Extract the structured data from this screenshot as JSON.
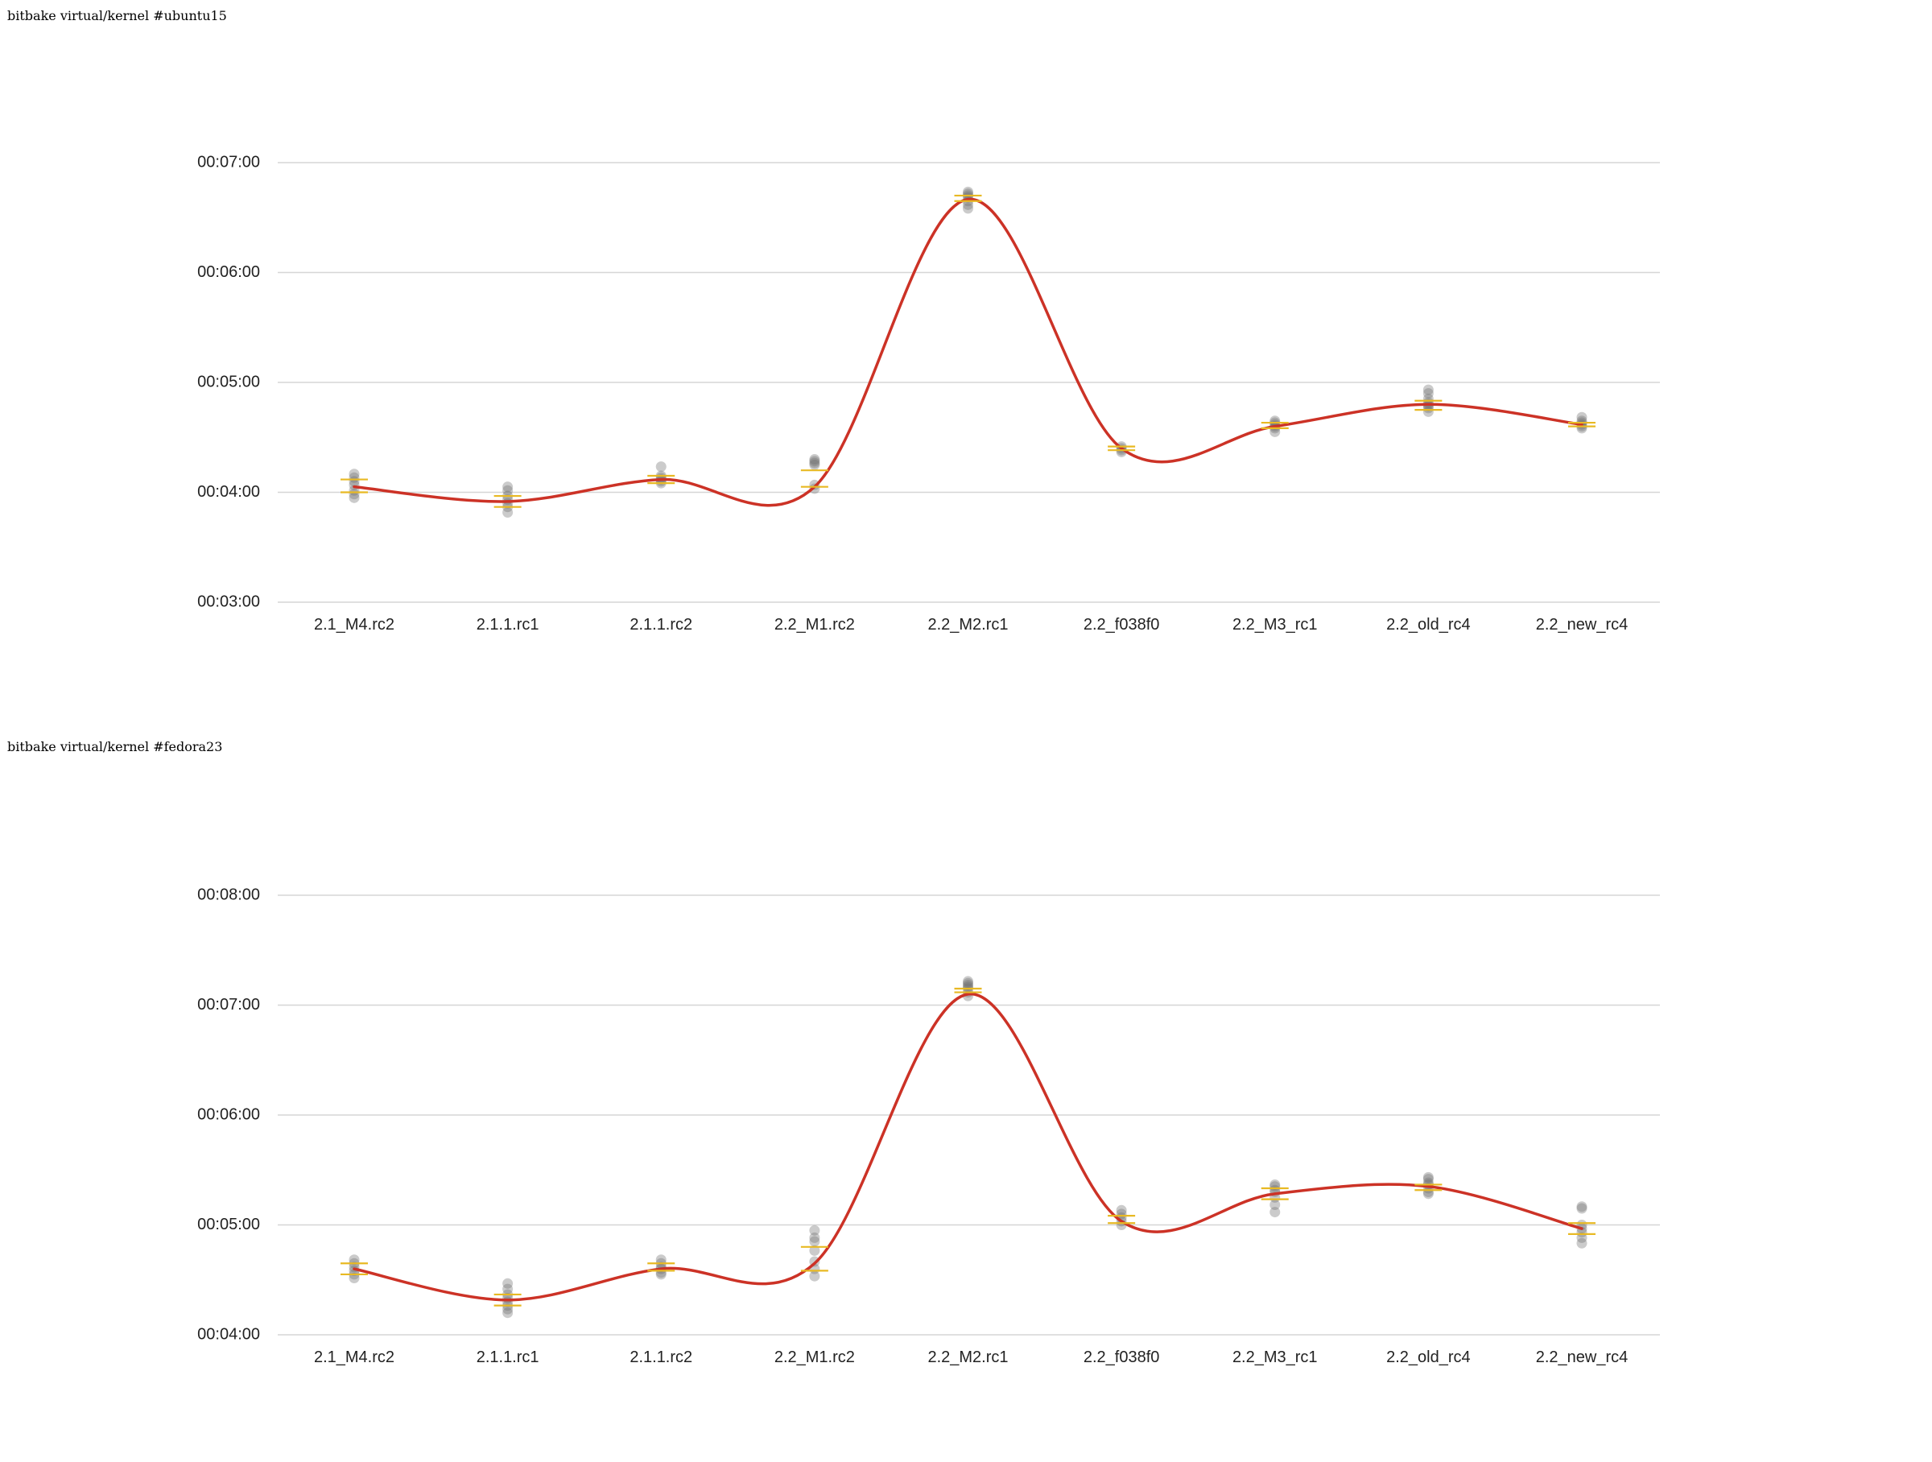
{
  "chart_data": [
    {
      "type": "line",
      "title": "bitbake virtual/kernel #ubuntu15",
      "categories": [
        "2.1_M4.rc2",
        "2.1.1.rc1",
        "2.1.1.rc2",
        "2.2_M1.rc2",
        "2.2_M2.rc1",
        "2.2_f038f0",
        "2.2_M3_rc1",
        "2.2_old_rc4",
        "2.2_new_rc4"
      ],
      "yticks": [
        "00:03:00",
        "00:04:00",
        "00:05:00",
        "00:06:00",
        "00:07:00"
      ],
      "ylim": [
        180,
        420
      ],
      "grid": true,
      "series": [
        {
          "values": [
            243,
            235,
            247,
            243,
            400,
            264,
            276,
            288,
            277
          ]
        }
      ],
      "points": [
        [
          241,
          244,
          246,
          248,
          250,
          237,
          239
        ],
        [
          229,
          232,
          234,
          236,
          238,
          241,
          243
        ],
        [
          245,
          246,
          247,
          248,
          249,
          254
        ],
        [
          242,
          244,
          255,
          256,
          257,
          258
        ],
        [
          395,
          397,
          399,
          401,
          402,
          403,
          404
        ],
        [
          262,
          263,
          264,
          265
        ],
        [
          273,
          275,
          276,
          277,
          278,
          279
        ],
        [
          284,
          286,
          287,
          288,
          289,
          291,
          294,
          296
        ],
        [
          275,
          276,
          277,
          278,
          279,
          281
        ]
      ],
      "error_bars": [
        [
          240,
          247
        ],
        [
          232,
          238
        ],
        [
          245,
          249
        ],
        [
          243,
          252
        ],
        [
          399,
          402
        ],
        [
          263,
          265
        ],
        [
          275,
          278
        ],
        [
          285,
          290
        ],
        [
          276,
          278
        ]
      ]
    },
    {
      "type": "line",
      "title": "bitbake virtual/kernel #fedora23",
      "categories": [
        "2.1_M4.rc2",
        "2.1.1.rc1",
        "2.1.1.rc2",
        "2.2_M1.rc2",
        "2.2_M2.rc1",
        "2.2_f038f0",
        "2.2_M3_rc1",
        "2.2_old_rc4",
        "2.2_new_rc4"
      ],
      "yticks": [
        "00:04:00",
        "00:05:00",
        "00:06:00",
        "00:07:00",
        "00:08:00"
      ],
      "ylim": [
        240,
        480
      ],
      "grid": true,
      "series": [
        {
          "values": [
            276,
            259,
            276,
            279,
            426,
            302,
            317,
            321,
            298
          ]
        }
      ],
      "points": [
        [
          271,
          273,
          275,
          277,
          279,
          281
        ],
        [
          252,
          254,
          256,
          258,
          260,
          262,
          265,
          268
        ],
        [
          273,
          274,
          276,
          277,
          279,
          281
        ],
        [
          272,
          276,
          280,
          286,
          291,
          293,
          297
        ],
        [
          425,
          427,
          429,
          430,
          431,
          432,
          433
        ],
        [
          300,
          302,
          304,
          306,
          308
        ],
        [
          307,
          311,
          315,
          318,
          319,
          321,
          322
        ],
        [
          317,
          318,
          320,
          322,
          323,
          325,
          326
        ],
        [
          290,
          293,
          296,
          298,
          300,
          309,
          310
        ]
      ],
      "error_bars": [
        [
          273,
          279
        ],
        [
          256,
          262
        ],
        [
          275,
          279
        ],
        [
          275,
          288
        ],
        [
          427,
          429
        ],
        [
          301,
          305
        ],
        [
          314,
          320
        ],
        [
          319,
          322
        ],
        [
          295,
          301
        ]
      ]
    }
  ]
}
